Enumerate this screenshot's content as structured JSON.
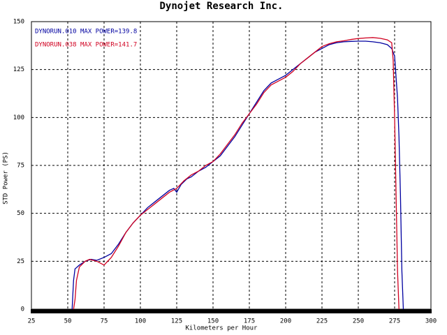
{
  "chart_data": {
    "type": "line",
    "title": "Dynojet  Research  Inc.",
    "xlabel": "Kilometers per Hour",
    "ylabel": "STD Power (PS)",
    "xlim": [
      25,
      300
    ],
    "xticks": [
      25,
      50,
      75,
      100,
      125,
      150,
      175,
      200,
      225,
      250,
      275,
      300
    ],
    "ylim": [
      0,
      150
    ],
    "yticks": [
      0,
      25,
      50,
      75,
      100,
      125,
      150
    ],
    "grid": true,
    "series": [
      {
        "name": "DYNORUN.010",
        "legend_text": "MAX POWER=139.8",
        "color": "#0000a0",
        "x": [
          53,
          54,
          55,
          58,
          62,
          66,
          70,
          75,
          80,
          85,
          90,
          95,
          100,
          105,
          110,
          115,
          120,
          123,
          125,
          128,
          132,
          135,
          140,
          145,
          150,
          155,
          160,
          165,
          170,
          175,
          180,
          185,
          190,
          195,
          200,
          205,
          210,
          215,
          220,
          225,
          230,
          235,
          240,
          245,
          250,
          255,
          260,
          265,
          270,
          273,
          275,
          277,
          278,
          279,
          280,
          281
        ],
        "values": [
          0,
          15,
          21,
          23,
          25,
          26,
          25.5,
          27,
          29,
          34,
          40,
          45,
          49,
          53,
          56,
          59,
          62,
          63,
          61,
          65,
          68,
          69,
          72,
          74,
          77,
          80,
          85,
          90,
          96,
          102,
          108,
          114,
          118,
          120,
          122,
          125,
          128,
          131,
          134,
          136,
          138,
          139,
          139.5,
          139.7,
          139.8,
          139.8,
          139.5,
          139,
          138,
          136,
          132,
          110,
          90,
          60,
          20,
          0
        ]
      },
      {
        "name": "DYNORUN.038",
        "legend_text": "MAX POWER=141.7",
        "color": "#d00020",
        "x": [
          54,
          55,
          56,
          58,
          62,
          65,
          70,
          75,
          80,
          85,
          90,
          95,
          100,
          105,
          110,
          115,
          120,
          125,
          130,
          135,
          140,
          145,
          150,
          155,
          160,
          165,
          170,
          175,
          180,
          185,
          190,
          195,
          200,
          205,
          210,
          215,
          220,
          225,
          230,
          235,
          240,
          245,
          250,
          255,
          260,
          265,
          270,
          273,
          274,
          275,
          276,
          277,
          278
        ],
        "values": [
          0,
          5,
          15,
          22,
          25,
          26,
          25,
          23,
          27,
          33,
          40,
          45,
          49,
          52,
          55,
          58,
          61,
          63,
          67,
          70,
          72,
          75,
          77,
          81,
          86,
          91,
          97,
          102,
          107,
          113,
          117,
          119,
          121,
          124,
          128,
          131,
          134,
          137,
          138.5,
          139.5,
          140,
          140.7,
          141.2,
          141.5,
          141.7,
          141.3,
          140.5,
          139,
          130,
          100,
          60,
          20,
          0
        ]
      }
    ]
  }
}
